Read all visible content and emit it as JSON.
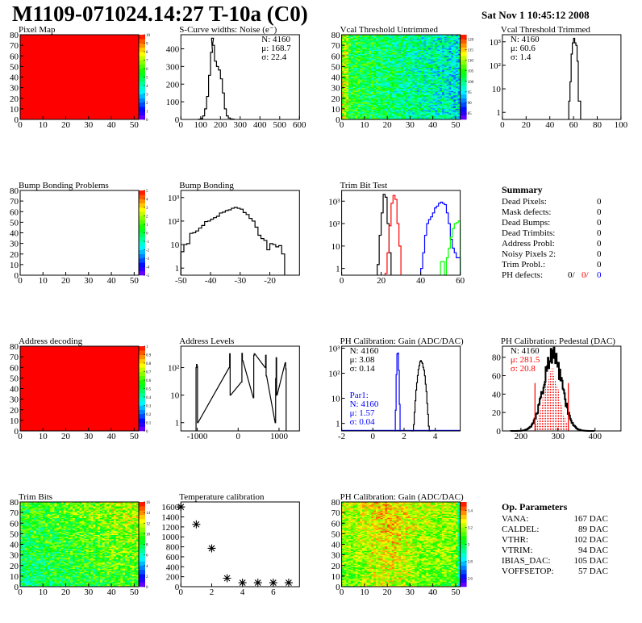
{
  "header": {
    "title": "M1109-071024.14:27 T-10a (C0)",
    "date": "Sat Nov  1 10:45:12 2008"
  },
  "summary": {
    "title": "Summary",
    "rows": [
      {
        "label": "Dead Pixels:",
        "value": "0"
      },
      {
        "label": "Mask defects:",
        "value": "0"
      },
      {
        "label": "Dead Bumps:",
        "value": "0"
      },
      {
        "label": "Dead Trimbits:",
        "value": "0"
      },
      {
        "label": "Address Probl:",
        "value": "0"
      },
      {
        "label": "Noisy Pixels 2:",
        "value": "0"
      },
      {
        "label": "Trim Probl.:",
        "value": "0"
      }
    ],
    "ph": {
      "label": "PH defects:",
      "v1": "0/",
      "v2": "0/",
      "v3": "0"
    }
  },
  "op": {
    "title": "Op. Parameters",
    "rows": [
      {
        "label": "VANA:",
        "value": "167 DAC"
      },
      {
        "label": "CALDEL:",
        "value": "89 DAC"
      },
      {
        "label": "VTHR:",
        "value": "102 DAC"
      },
      {
        "label": "VTRIM:",
        "value": "94 DAC"
      },
      {
        "label": "IBIAS_DAC:",
        "value": "105 DAC"
      },
      {
        "label": "VOFFSETOP:",
        "value": "57 DAC"
      }
    ]
  },
  "colors": {
    "red": "#ff0000",
    "blue": "#0000ff",
    "green": "#00ff00",
    "black": "#000000"
  },
  "chart_data": [
    {
      "type": "heatmap",
      "title": "Pixel Map",
      "xlim": [
        0,
        52
      ],
      "ylim": [
        0,
        80
      ],
      "xticks": [
        0,
        10,
        20,
        30,
        40,
        50
      ],
      "yticks": [
        0,
        10,
        20,
        30,
        40,
        50,
        60,
        70,
        80
      ],
      "zlim": [
        0,
        10
      ],
      "zticks": [
        "0",
        "1",
        "2",
        "3",
        "4",
        "5",
        "6",
        "7",
        "8",
        "9",
        "10"
      ],
      "uniform_value": 10
    },
    {
      "type": "bar",
      "title": "S-Curve widths: Noise (e⁻)",
      "xlim": [
        0,
        600
      ],
      "ylim": [
        0,
        480
      ],
      "xticks": [
        0,
        100,
        200,
        300,
        400,
        500,
        600
      ],
      "yticks": [
        0,
        100,
        200,
        300,
        400
      ],
      "series": [
        {
          "color": "#000000",
          "width": 10,
          "bins": [
            [
              90,
              2
            ],
            [
              100,
              5
            ],
            [
              110,
              20
            ],
            [
              120,
              60
            ],
            [
              130,
              130
            ],
            [
              140,
              250
            ],
            [
              150,
              380
            ],
            [
              155,
              460
            ],
            [
              160,
              420
            ],
            [
              170,
              330
            ],
            [
              180,
              300
            ],
            [
              190,
              280
            ],
            [
              200,
              230
            ],
            [
              210,
              150
            ],
            [
              220,
              60
            ],
            [
              230,
              20
            ],
            [
              240,
              8
            ],
            [
              250,
              3
            ],
            [
              260,
              2
            ]
          ]
        }
      ],
      "stats": [
        "N: 4160",
        "μ: 168.7",
        "σ: 22.4"
      ]
    },
    {
      "type": "heatmap",
      "title": "Vcal Threshold Untrimmed",
      "xlim": [
        0,
        52
      ],
      "ylim": [
        0,
        80
      ],
      "xticks": [
        0,
        10,
        20,
        30,
        40,
        50
      ],
      "yticks": [
        0,
        10,
        20,
        30,
        40,
        50,
        60,
        70,
        80
      ],
      "zlim": [
        82,
        122
      ],
      "zticks": [
        "85",
        "90",
        "95",
        "100",
        "105",
        "110",
        "115",
        "120"
      ],
      "mean": 101
    },
    {
      "type": "bar",
      "title": "Vcal Threshold Trimmed",
      "log": true,
      "xlim": [
        0,
        100
      ],
      "ylim": [
        0.5,
        2000
      ],
      "xticks": [
        0,
        20,
        40,
        60,
        80,
        100
      ],
      "yticks": [
        1,
        10,
        100,
        1000
      ],
      "series": [
        {
          "color": "#000000",
          "width": 1,
          "bins": [
            [
              56,
              3
            ],
            [
              57,
              20
            ],
            [
              58,
              300
            ],
            [
              59,
              900
            ],
            [
              60,
              1400
            ],
            [
              61,
              900
            ],
            [
              62,
              700
            ],
            [
              63,
              150
            ],
            [
              64,
              3
            ],
            [
              65,
              3
            ]
          ]
        }
      ],
      "stats": [
        "N: 4160",
        "μ: 60.6",
        "σ:  1.4"
      ]
    },
    {
      "type": "heatmap",
      "title": "Bump Bonding Problems",
      "xlim": [
        0,
        52
      ],
      "ylim": [
        0,
        80
      ],
      "xticks": [
        0,
        10,
        20,
        30,
        40,
        50
      ],
      "yticks": [
        0,
        10,
        20,
        30,
        40,
        50,
        60,
        70,
        80
      ],
      "zlim": [
        -5,
        5
      ],
      "zticks": [
        "-5",
        "-4",
        "-3",
        "-2",
        "-1",
        "0",
        "1",
        "2",
        "3",
        "4",
        "5"
      ],
      "empty": true
    },
    {
      "type": "bar",
      "title": "Bump Bonding",
      "log": true,
      "xlim": [
        -50,
        -10
      ],
      "ylim": [
        0.5,
        2000
      ],
      "xticks": [
        -50,
        -40,
        -30,
        -20
      ],
      "yticks": [
        1,
        10,
        100,
        1000
      ],
      "series": [
        {
          "color": "#000000",
          "width": 1,
          "bins": [
            [
              -50,
              5
            ],
            [
              -49,
              10
            ],
            [
              -48,
              11
            ],
            [
              -47,
              30
            ],
            [
              -46,
              32
            ],
            [
              -45,
              38
            ],
            [
              -44,
              50
            ],
            [
              -43,
              65
            ],
            [
              -42,
              95
            ],
            [
              -41,
              100
            ],
            [
              -40,
              120
            ],
            [
              -39,
              140
            ],
            [
              -38,
              160
            ],
            [
              -37,
              220
            ],
            [
              -36,
              240
            ],
            [
              -35,
              280
            ],
            [
              -34,
              300
            ],
            [
              -33,
              350
            ],
            [
              -32,
              380
            ],
            [
              -31,
              350
            ],
            [
              -30,
              320
            ],
            [
              -29,
              230
            ],
            [
              -28,
              190
            ],
            [
              -27,
              130
            ],
            [
              -26,
              100
            ],
            [
              -25,
              55
            ],
            [
              -24,
              25
            ],
            [
              -23,
              18
            ],
            [
              -22,
              15
            ],
            [
              -21,
              6
            ],
            [
              -20,
              11
            ],
            [
              -19,
              10
            ],
            [
              -18,
              8
            ],
            [
              -17,
              9
            ],
            [
              -16,
              4
            ]
          ]
        }
      ]
    },
    {
      "type": "bar",
      "title": "Trim Bit Test",
      "log": true,
      "xlim": [
        0,
        60
      ],
      "ylim": [
        0.5,
        3000
      ],
      "xticks": [
        0,
        20,
        40,
        60
      ],
      "yticks": [
        1,
        10,
        100,
        1000
      ],
      "series": [
        {
          "color": "#000000",
          "width": 1,
          "bins": [
            [
              18,
              1.5
            ],
            [
              19,
              30
            ],
            [
              20,
              300
            ],
            [
              21,
              2000
            ],
            [
              22,
              1500
            ],
            [
              23,
              100
            ],
            [
              24,
              5
            ]
          ]
        },
        {
          "color": "#ff0000",
          "width": 1,
          "bins": [
            [
              22,
              0.6
            ],
            [
              23,
              5
            ],
            [
              24,
              80
            ],
            [
              25,
              800
            ],
            [
              26,
              1800
            ],
            [
              27,
              1200
            ],
            [
              28,
              100
            ],
            [
              29,
              10
            ]
          ]
        },
        {
          "color": "#0000ff",
          "width": 1,
          "bins": [
            [
              40,
              1
            ],
            [
              41,
              5
            ],
            [
              42,
              30
            ],
            [
              43,
              100
            ],
            [
              44,
              150
            ],
            [
              45,
              200
            ],
            [
              46,
              300
            ],
            [
              47,
              500
            ],
            [
              48,
              600
            ],
            [
              49,
              800
            ],
            [
              50,
              900
            ],
            [
              51,
              800
            ],
            [
              52,
              700
            ],
            [
              53,
              300
            ],
            [
              54,
              100
            ],
            [
              55,
              20
            ],
            [
              56,
              8
            ],
            [
              57,
              5
            ],
            [
              58,
              3
            ],
            [
              59,
              3
            ]
          ]
        },
        {
          "color": "#00ff00",
          "width": 1,
          "bins": [
            [
              50,
              2
            ],
            [
              51,
              2
            ],
            [
              52,
              0.4
            ],
            [
              53,
              3
            ],
            [
              54,
              8
            ],
            [
              55,
              25
            ],
            [
              56,
              60
            ],
            [
              57,
              100
            ],
            [
              58,
              110
            ],
            [
              59,
              130
            ]
          ]
        }
      ]
    },
    {
      "type": "heatmap",
      "title": "Address decoding",
      "xlim": [
        0,
        52
      ],
      "ylim": [
        0,
        80
      ],
      "xticks": [
        0,
        10,
        20,
        30,
        40,
        50
      ],
      "yticks": [
        0,
        10,
        20,
        30,
        40,
        50,
        60,
        70,
        80
      ],
      "zlim": [
        0,
        1
      ],
      "zticks": [
        "0",
        "0.1",
        "0.2",
        "0.3",
        "0.4",
        "0.5",
        "0.6",
        "0.7",
        "0.8",
        "0.9",
        "1"
      ],
      "uniform_value": 1
    },
    {
      "type": "bar",
      "title": "Address Levels",
      "log": true,
      "xlim": [
        -1400,
        1500
      ],
      "ylim": [
        0.5,
        600
      ],
      "xticks": [
        -1000,
        0,
        1000
      ],
      "yticks": [
        1,
        10,
        100
      ],
      "series": [
        {
          "color": "#000000",
          "width": 12,
          "bins": [
            [
              -1030,
              100
            ],
            [
              -1018,
              130
            ],
            [
              -1006,
              110
            ],
            [
              -994,
              1
            ],
            [
              -220,
              100
            ],
            [
              -208,
              320
            ],
            [
              -196,
              10
            ],
            [
              80,
              30
            ],
            [
              92,
              330
            ],
            [
              104,
              180
            ],
            [
              370,
              8
            ],
            [
              382,
              280
            ],
            [
              394,
              320
            ],
            [
              660,
              100
            ],
            [
              672,
              280
            ],
            [
              684,
              50
            ],
            [
              905,
              1
            ],
            [
              917,
              40
            ],
            [
              929,
              230
            ],
            [
              941,
              10
            ],
            [
              1150,
              150
            ],
            [
              1162,
              90
            ]
          ]
        }
      ]
    },
    {
      "type": "bar",
      "title": "PH Calibration: Gain (ADC/DAC)",
      "log": true,
      "xlim": [
        -2,
        5.6
      ],
      "ylim": [
        0.5,
        1200
      ],
      "xticks": [
        -2,
        0,
        2,
        4
      ],
      "yticks": [
        1,
        10,
        100,
        1000
      ],
      "series": [
        {
          "color": "#0000ff",
          "mean": 1.57,
          "sigma": 0.04,
          "peak": 700
        },
        {
          "color": "#000000",
          "mean": 3.08,
          "sigma": 0.14,
          "peak": 300
        }
      ],
      "stats": [
        "N: 4160",
        "μ: 3.08",
        "σ: 0.14"
      ],
      "stats2": [
        "Par1:",
        "N: 4160",
        "μ: 1.57",
        "σ: 0.04"
      ]
    },
    {
      "type": "bar",
      "title": "PH Calibration: Pedestal (DAC)",
      "xlim": [
        150,
        470
      ],
      "ylim": [
        0,
        92
      ],
      "xticks": [
        200,
        300,
        400
      ],
      "yticks": [
        0,
        20,
        40,
        60,
        80
      ],
      "series": [
        {
          "color": "#000000",
          "mean": 285,
          "sigma": 25,
          "peak": 82
        },
        {
          "color": "#ff0000",
          "mean": 281.5,
          "sigma": 20.8,
          "peak": 65,
          "range": [
            238,
            328
          ]
        }
      ],
      "stats": [
        "N: 4160",
        "μ: 281.5",
        "σ: 20.8"
      ]
    },
    {
      "type": "heatmap",
      "title": "Trim Bits",
      "xlim": [
        0,
        52
      ],
      "ylim": [
        0,
        80
      ],
      "xticks": [
        0,
        10,
        20,
        30,
        40,
        50
      ],
      "yticks": [
        0,
        10,
        20,
        30,
        40,
        50,
        60,
        70,
        80
      ],
      "zlim": [
        0,
        16
      ],
      "zticks": [
        "0",
        "2",
        "4",
        "6",
        "8",
        "10",
        "12",
        "14",
        "16"
      ],
      "mean": 8
    },
    {
      "type": "scatter",
      "title": "Temperature calibration",
      "xlim": [
        0,
        7.7
      ],
      "ylim": [
        0,
        1700
      ],
      "xticks": [
        0,
        2,
        4,
        6
      ],
      "yticks": [
        0,
        200,
        400,
        600,
        800,
        1000,
        1200,
        1400,
        1600
      ],
      "points": [
        [
          0,
          1600
        ],
        [
          1,
          1250
        ],
        [
          2,
          770
        ],
        [
          3,
          170
        ],
        [
          4,
          80
        ],
        [
          5,
          80
        ],
        [
          6,
          80
        ],
        [
          7,
          80
        ]
      ]
    },
    {
      "type": "heatmap",
      "title": "PH Calibration: Gain (ADC/DAC)",
      "xlim": [
        0,
        52
      ],
      "ylim": [
        0,
        80
      ],
      "xticks": [
        0,
        10,
        20,
        30,
        40,
        50
      ],
      "yticks": [
        0,
        10,
        20,
        30,
        40,
        50,
        60,
        70,
        80
      ],
      "zlim": [
        2.5,
        3.5
      ],
      "zticks": [
        "2.6",
        "2.8",
        "3",
        "3.2",
        "3.4"
      ],
      "mean": 3.1
    }
  ]
}
